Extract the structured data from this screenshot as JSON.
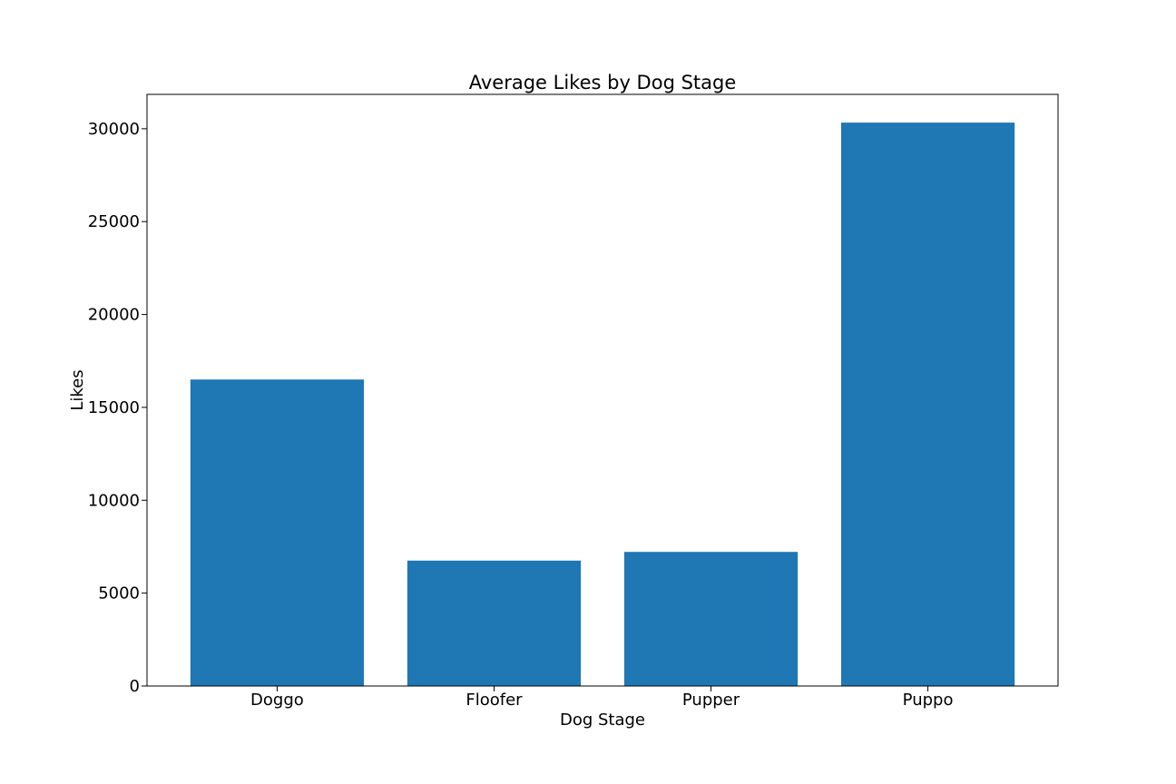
{
  "chart_data": {
    "type": "bar",
    "title": "Average Likes by Dog Stage",
    "xlabel": "Dog Stage",
    "ylabel": "Likes",
    "categories": [
      "Doggo",
      "Floofer",
      "Pupper",
      "Puppo"
    ],
    "values": [
      16500,
      6750,
      7220,
      30330
    ],
    "ylim": [
      0,
      31850
    ],
    "yticks": [
      0,
      5000,
      10000,
      15000,
      20000,
      25000,
      30000
    ],
    "ytick_labels": [
      "0",
      "5000",
      "10000",
      "15000",
      "20000",
      "25000",
      "30000"
    ],
    "bar_color": "#1f77b4",
    "grid": false,
    "legend": false
  }
}
